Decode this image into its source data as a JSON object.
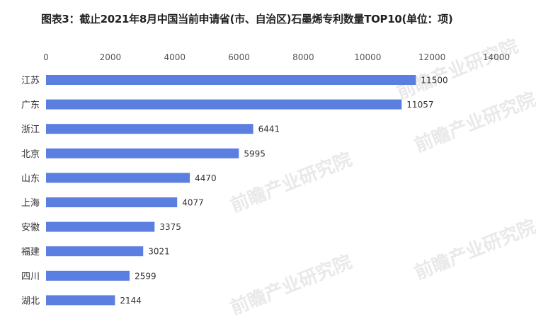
{
  "title": "图表3：截止2021年8月中国当前申请省(市、自治区)石墨烯专利数量TOP10(单位：项)",
  "watermark": "前瞻产业研究院",
  "colors": {
    "bar": "#5b7fe0",
    "text": "#333333",
    "axis": "#555555"
  },
  "chart_data": {
    "type": "bar",
    "orientation": "horizontal",
    "x_axis_position": "top",
    "xlim": [
      0,
      14000
    ],
    "xticks": [
      0,
      2000,
      4000,
      6000,
      8000,
      10000,
      12000,
      14000
    ],
    "grid": false,
    "data_labels": true,
    "categories": [
      "江苏",
      "广东",
      "浙江",
      "北京",
      "山东",
      "上海",
      "安徽",
      "福建",
      "四川",
      "湖北"
    ],
    "values": [
      11500,
      11057,
      6441,
      5995,
      4470,
      4077,
      3375,
      3021,
      2599,
      2144
    ]
  }
}
